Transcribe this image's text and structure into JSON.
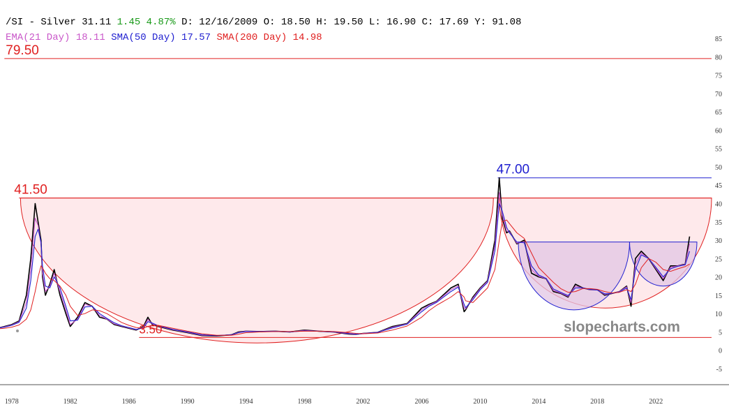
{
  "header": {
    "symbol": "/SI - Silver",
    "last": "31.11",
    "change": "1.45",
    "change_pct": "4.87%",
    "date_label": "D: 12/16/2009",
    "open_label": "O: 18.50",
    "high_label": "H: 19.50",
    "low_label": "L: 16.90",
    "close_label": "C: 17.69",
    "y_label": "Y: 91.08",
    "ema_label": "EMA(21 Day) 18.11",
    "sma50_label": "SMA(50 Day) 17.57",
    "sma200_label": "SMA(200 Day) 14.98"
  },
  "watermark": "slopecharts.com",
  "colors": {
    "price": "#000000",
    "ema": "#c957c9",
    "sma50": "#2020d0",
    "sma200": "#e02020",
    "resistance": "#e02020",
    "cup_fill": "#fde2e4",
    "inner_fill": "#e2c6e4",
    "change": "#1a9a1a"
  },
  "chart_data": {
    "type": "line",
    "title": "",
    "xlabel": "",
    "ylabel": "",
    "xlim": [
      1977.2,
      2025.8
    ],
    "ylim": [
      -5,
      85
    ],
    "y_ticks": [
      -5,
      0,
      5,
      10,
      15,
      20,
      25,
      30,
      35,
      40,
      45,
      50,
      55,
      60,
      65,
      70,
      75,
      80,
      85
    ],
    "x_ticks": [
      1978,
      1982,
      1986,
      1990,
      1994,
      1998,
      2002,
      2006,
      2010,
      2014,
      2018,
      2022
    ],
    "grid": false,
    "series": [
      {
        "name": "/SI - Silver",
        "x": [
          1977.0,
          1977.5,
          1978.0,
          1978.5,
          1979.0,
          1979.3,
          1979.6,
          1979.8,
          1980.0,
          1980.1,
          1980.3,
          1980.6,
          1980.9,
          1981.3,
          1981.7,
          1982.0,
          1982.5,
          1983.0,
          1983.5,
          1984.0,
          1984.5,
          1985.0,
          1985.5,
          1986.0,
          1986.5,
          1987.0,
          1987.3,
          1987.6,
          1988.0,
          1989.0,
          1990.0,
          1991.0,
          1992.0,
          1993.0,
          1993.5,
          1994.0,
          1995.0,
          1996.0,
          1997.0,
          1998.0,
          1999.0,
          2000.0,
          2001.0,
          2001.5,
          2002.0,
          2003.0,
          2004.0,
          2005.0,
          2006.0,
          2006.5,
          2007.0,
          2008.0,
          2008.5,
          2008.9,
          2009.0,
          2009.5,
          2010.0,
          2010.5,
          2011.0,
          2011.3,
          2011.5,
          2011.8,
          2012.0,
          2012.5,
          2013.0,
          2013.5,
          2014.0,
          2014.5,
          2015.0,
          2015.5,
          2016.0,
          2016.5,
          2017.0,
          2017.5,
          2018.0,
          2018.5,
          2019.0,
          2019.5,
          2020.0,
          2020.3,
          2020.6,
          2021.0,
          2021.5,
          2022.0,
          2022.5,
          2023.0,
          2023.5,
          2024.0,
          2024.3
        ],
        "values": [
          6.0,
          6.5,
          7.0,
          8.0,
          15.0,
          25.0,
          40.0,
          35.0,
          30.0,
          20.0,
          15.0,
          18.0,
          22.0,
          15.0,
          10.0,
          6.5,
          9.0,
          13.0,
          12.0,
          9.0,
          8.5,
          7.0,
          6.5,
          6.0,
          5.5,
          6.5,
          9.0,
          7.0,
          6.5,
          5.5,
          4.8,
          4.0,
          3.9,
          4.2,
          5.0,
          5.2,
          5.1,
          5.2,
          5.0,
          5.5,
          5.2,
          5.0,
          4.4,
          4.3,
          4.6,
          4.9,
          6.5,
          7.3,
          11.5,
          12.5,
          13.3,
          17.0,
          18.0,
          10.5,
          11.0,
          14.5,
          17.0,
          19.0,
          30.0,
          47.0,
          36.0,
          32.0,
          32.5,
          29.0,
          30.0,
          21.0,
          20.0,
          19.5,
          16.0,
          15.5,
          14.5,
          18.0,
          17.0,
          16.5,
          16.5,
          15.0,
          15.5,
          16.0,
          17.5,
          12.0,
          25.0,
          27.0,
          25.0,
          22.0,
          19.0,
          23.0,
          23.0,
          23.5,
          31.0
        ]
      },
      {
        "name": "EMA(21 Day)",
        "x": [
          1977.0,
          1977.5,
          1978.0,
          1978.5,
          1979.0,
          1979.3,
          1979.6,
          1979.8,
          1980.0,
          1980.1,
          1980.3,
          1980.6,
          1980.9,
          1981.3,
          1981.7,
          1982.0,
          1982.5,
          1983.0,
          1983.5,
          1984.0,
          1984.5,
          1985.0,
          1985.5,
          1986.0,
          1986.5,
          1987.0,
          1987.3,
          1987.6,
          1988.0,
          1989.0,
          1990.0,
          1991.0,
          1992.0,
          1993.0,
          1993.5,
          1994.0,
          1995.0,
          1996.0,
          1997.0,
          1998.0,
          1999.0,
          2000.0,
          2001.0,
          2001.5,
          2002.0,
          2003.0,
          2004.0,
          2005.0,
          2006.0,
          2006.5,
          2007.0,
          2008.0,
          2008.5,
          2008.9,
          2009.0,
          2009.5,
          2010.0,
          2010.5,
          2011.0,
          2011.3,
          2011.5,
          2011.8,
          2012.0,
          2012.5,
          2013.0,
          2013.5,
          2014.0,
          2014.5,
          2015.0,
          2015.5,
          2016.0,
          2016.5,
          2017.0,
          2017.5,
          2018.0,
          2018.5,
          2019.0,
          2019.5,
          2020.0,
          2020.3,
          2020.6,
          2021.0,
          2021.5,
          2022.0,
          2022.5,
          2023.0,
          2023.5,
          2024.0,
          2024.3
        ],
        "values": [
          6.0,
          6.4,
          6.9,
          7.8,
          13.0,
          22.0,
          36.0,
          34.0,
          29.0,
          21.0,
          16.0,
          17.5,
          21.0,
          16.0,
          11.0,
          7.0,
          8.5,
          12.5,
          12.0,
          9.5,
          8.5,
          7.2,
          6.6,
          6.1,
          5.6,
          6.3,
          8.4,
          7.2,
          6.6,
          5.6,
          4.9,
          4.1,
          4.0,
          4.2,
          4.9,
          5.2,
          5.1,
          5.2,
          5.0,
          5.4,
          5.2,
          5.0,
          4.5,
          4.3,
          4.6,
          4.9,
          6.3,
          7.2,
          11.0,
          12.3,
          13.2,
          16.5,
          17.5,
          11.5,
          11.3,
          14.2,
          16.8,
          18.8,
          28.5,
          43.0,
          37.0,
          32.5,
          32.3,
          29.2,
          29.6,
          22.0,
          20.2,
          19.5,
          16.3,
          15.6,
          14.7,
          17.5,
          17.0,
          16.5,
          16.4,
          15.2,
          15.5,
          16.0,
          17.3,
          13.0,
          23.5,
          26.5,
          25.0,
          22.3,
          19.5,
          22.6,
          23.0,
          23.4,
          29.0
        ]
      },
      {
        "name": "SMA(50 Day)",
        "x": [
          1977.0,
          1977.5,
          1978.0,
          1978.5,
          1979.0,
          1979.3,
          1979.6,
          1979.8,
          1980.0,
          1980.1,
          1980.3,
          1980.6,
          1980.9,
          1981.3,
          1981.7,
          1982.0,
          1982.5,
          1983.0,
          1983.5,
          1984.0,
          1984.5,
          1985.0,
          1985.5,
          1986.0,
          1986.5,
          1987.0,
          1987.3,
          1987.6,
          1988.0,
          1989.0,
          1990.0,
          1991.0,
          1992.0,
          1993.0,
          1993.5,
          1994.0,
          1995.0,
          1996.0,
          1997.0,
          1998.0,
          1999.0,
          2000.0,
          2001.0,
          2001.5,
          2002.0,
          2003.0,
          2004.0,
          2005.0,
          2006.0,
          2006.5,
          2007.0,
          2008.0,
          2008.5,
          2008.9,
          2009.0,
          2009.5,
          2010.0,
          2010.5,
          2011.0,
          2011.3,
          2011.5,
          2011.8,
          2012.0,
          2012.5,
          2013.0,
          2013.5,
          2014.0,
          2014.5,
          2015.0,
          2015.5,
          2016.0,
          2016.5,
          2017.0,
          2017.5,
          2018.0,
          2018.5,
          2019.0,
          2019.5,
          2020.0,
          2020.3,
          2020.6,
          2021.0,
          2021.5,
          2022.0,
          2022.5,
          2023.0,
          2023.5,
          2024.0,
          2024.3
        ],
        "values": [
          6.0,
          6.3,
          6.8,
          7.6,
          11.5,
          19.0,
          31.0,
          33.0,
          29.5,
          23.0,
          17.5,
          17.0,
          20.0,
          17.0,
          12.0,
          8.0,
          8.2,
          11.8,
          12.0,
          10.0,
          8.7,
          7.5,
          6.7,
          6.2,
          5.7,
          6.1,
          7.8,
          7.4,
          6.7,
          5.7,
          5.0,
          4.2,
          4.0,
          4.2,
          4.8,
          5.1,
          5.1,
          5.2,
          5.0,
          5.3,
          5.2,
          5.0,
          4.6,
          4.4,
          4.5,
          4.9,
          6.1,
          7.1,
          10.5,
          12.0,
          13.0,
          16.0,
          17.2,
          12.5,
          11.6,
          13.8,
          16.5,
          18.5,
          27.0,
          40.0,
          38.0,
          33.5,
          32.0,
          29.5,
          29.3,
          23.0,
          20.5,
          19.6,
          16.7,
          15.8,
          14.9,
          17.0,
          17.0,
          16.6,
          16.4,
          15.4,
          15.5,
          15.9,
          17.0,
          13.8,
          22.0,
          26.0,
          25.0,
          22.6,
          20.0,
          22.2,
          22.9,
          23.3,
          27.0
        ]
      },
      {
        "name": "SMA(200 Day)",
        "x": [
          1977.0,
          1977.5,
          1978.0,
          1978.5,
          1979.0,
          1979.3,
          1979.6,
          1979.8,
          1980.0,
          1980.1,
          1980.3,
          1980.6,
          1980.9,
          1981.3,
          1981.7,
          1982.0,
          1982.5,
          1983.0,
          1983.5,
          1984.0,
          1984.5,
          1985.0,
          1985.5,
          1986.0,
          1986.5,
          1987.0,
          1987.3,
          1987.6,
          1988.0,
          1989.0,
          1990.0,
          1991.0,
          1992.0,
          1993.0,
          1993.5,
          1994.0,
          1995.0,
          1996.0,
          1997.0,
          1998.0,
          1999.0,
          2000.0,
          2001.0,
          2001.5,
          2002.0,
          2003.0,
          2004.0,
          2005.0,
          2006.0,
          2006.5,
          2007.0,
          2008.0,
          2008.5,
          2008.9,
          2009.0,
          2009.5,
          2010.0,
          2010.5,
          2011.0,
          2011.3,
          2011.5,
          2011.8,
          2012.0,
          2012.5,
          2013.0,
          2013.5,
          2014.0,
          2014.5,
          2015.0,
          2015.5,
          2016.0,
          2016.5,
          2017.0,
          2017.5,
          2018.0,
          2018.5,
          2019.0,
          2019.5,
          2020.0,
          2020.3,
          2020.6,
          2021.0,
          2021.5,
          2022.0,
          2022.5,
          2023.0,
          2023.5,
          2024.0,
          2024.3
        ],
        "values": [
          5.8,
          6.0,
          6.3,
          6.9,
          8.5,
          11.0,
          16.0,
          20.0,
          23.0,
          22.5,
          21.0,
          19.5,
          19.0,
          17.5,
          15.0,
          12.0,
          9.5,
          10.0,
          11.0,
          10.8,
          10.0,
          8.8,
          7.6,
          6.8,
          6.2,
          6.0,
          6.5,
          6.8,
          6.8,
          6.0,
          5.2,
          4.5,
          4.1,
          4.1,
          4.4,
          4.8,
          5.0,
          5.1,
          5.1,
          5.2,
          5.2,
          5.1,
          4.8,
          4.6,
          4.5,
          4.7,
          5.5,
          6.6,
          9.0,
          10.8,
          12.2,
          14.5,
          16.0,
          14.5,
          13.5,
          13.0,
          15.0,
          17.0,
          22.0,
          30.0,
          35.0,
          35.5,
          34.5,
          32.0,
          30.5,
          26.5,
          22.5,
          20.5,
          18.5,
          16.8,
          15.8,
          16.0,
          16.8,
          16.8,
          16.6,
          16.0,
          15.6,
          15.8,
          16.5,
          16.0,
          18.0,
          22.5,
          25.0,
          24.0,
          22.0,
          21.5,
          22.2,
          22.8,
          23.5
        ]
      }
    ],
    "resistance_lines": [
      {
        "label": "79.50",
        "value": 79.5,
        "x_start": 1977.5,
        "x_end": 2025.8,
        "color": "#e02020"
      },
      {
        "label": "41.50",
        "value": 41.5,
        "x_start": 1978.5,
        "x_end": 2025.8,
        "color": "#e02020"
      },
      {
        "label": "47.00",
        "value": 47.0,
        "x_start": 2011.2,
        "x_end": 2025.8,
        "color": "#2020d0"
      },
      {
        "label": "3.50",
        "value": 3.5,
        "x_start": 1986.7,
        "x_end": 2025.8,
        "color": "#e02020"
      }
    ],
    "cup_patterns": [
      {
        "x_start": 1978.6,
        "x_end": 2010.9,
        "rim": 41.5,
        "bottom": 2.0,
        "color": "#e02020",
        "fill": "#fde2e4"
      },
      {
        "x_start": 2011.3,
        "x_end": 2025.8,
        "rim": 41.5,
        "bottom": 11.5,
        "color": "#e02020",
        "fill": "#fde2e4"
      },
      {
        "x_start": 2012.6,
        "x_end": 2020.2,
        "rim": 29.5,
        "bottom": 11.0,
        "color": "#2020d0",
        "fill": "#e2c6e4"
      },
      {
        "x_start": 2020.2,
        "x_end": 2024.8,
        "rim": 29.5,
        "bottom": 17.5,
        "color": "#2020d0",
        "fill": "#e2c6e4"
      }
    ]
  }
}
